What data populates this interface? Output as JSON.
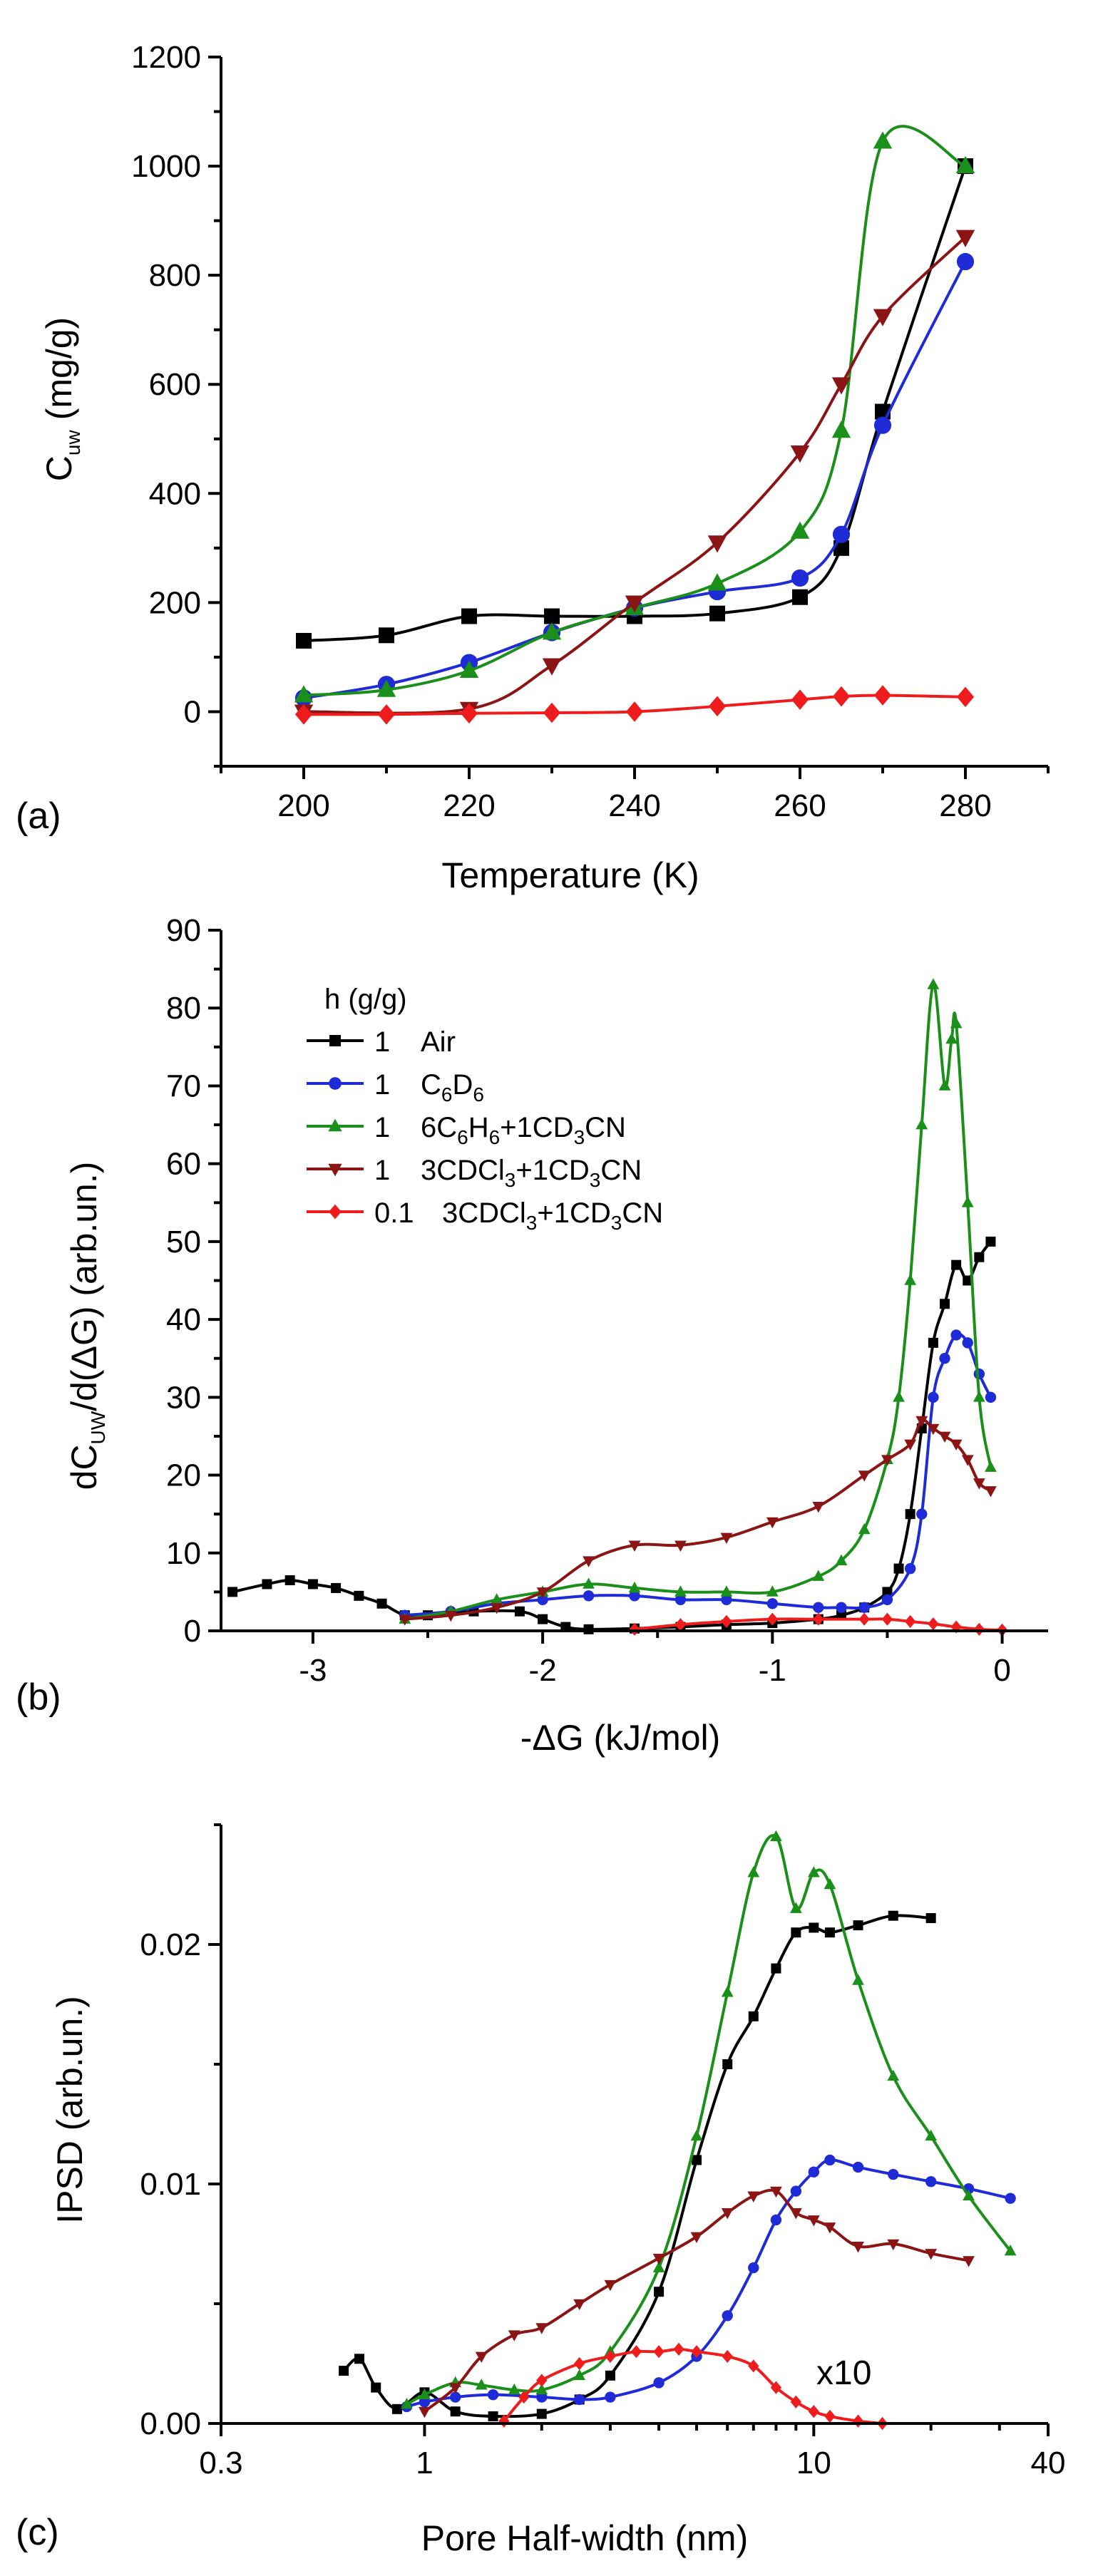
{
  "colors": {
    "air": "#000000",
    "c6d6": "#1f2bd6",
    "benzene_mix": "#1a8f1a",
    "chloroform_mix": "#8b1414",
    "chloroform_mix_low": "#ee1c1c"
  },
  "chart_data": [
    {
      "id": "a",
      "panel_label": "(a)",
      "type": "line",
      "xlabel": "Temperature  (K)",
      "ylabel_main": "C",
      "ylabel_sub": "uw",
      "ylabel_tail": "(mg/g)",
      "xlim": [
        190,
        290
      ],
      "ylim": [
        -100,
        1200
      ],
      "xticks": [
        200,
        220,
        240,
        260,
        280
      ],
      "yticks": [
        0,
        200,
        400,
        600,
        800,
        1000,
        1200
      ],
      "series": [
        {
          "name": "1 Air",
          "color_key": "air",
          "marker": "square",
          "x": [
            200,
            210,
            220,
            230,
            240,
            250,
            260,
            265,
            270,
            280
          ],
          "y": [
            130,
            140,
            175,
            175,
            175,
            180,
            210,
            300,
            550,
            1000
          ]
        },
        {
          "name": "1 C6D6",
          "color_key": "c6d6",
          "marker": "circle",
          "x": [
            200,
            210,
            220,
            230,
            240,
            250,
            260,
            265,
            270,
            280
          ],
          "y": [
            25,
            50,
            90,
            145,
            190,
            220,
            245,
            325,
            525,
            825
          ]
        },
        {
          "name": "1 6C6H6+1CD3CN",
          "color_key": "benzene_mix",
          "marker": "triangle-up",
          "x": [
            200,
            210,
            220,
            230,
            240,
            250,
            260,
            265,
            270,
            280
          ],
          "y": [
            30,
            40,
            75,
            145,
            190,
            235,
            330,
            515,
            1045,
            1000
          ]
        },
        {
          "name": "1 3CDCl3+1CD3CN",
          "color_key": "chloroform_mix",
          "marker": "triangle-down",
          "x": [
            200,
            220,
            230,
            240,
            250,
            260,
            265,
            270,
            280
          ],
          "y": [
            0,
            5,
            85,
            200,
            310,
            475,
            600,
            725,
            870
          ]
        },
        {
          "name": "0.1 3CDCl3+1CD3CN",
          "color_key": "chloroform_mix_low",
          "marker": "diamond",
          "x": [
            200,
            210,
            220,
            230,
            240,
            250,
            260,
            265,
            270,
            280
          ],
          "y": [
            -5,
            -5,
            -3,
            -2,
            0,
            10,
            22,
            28,
            30,
            27
          ]
        }
      ]
    },
    {
      "id": "b",
      "panel_label": "(b)",
      "type": "line",
      "xlabel": "-ΔG  (kJ/mol)",
      "ylabel_parts": [
        "dC",
        "UW",
        "/d(ΔG)  (arb.un.)"
      ],
      "xlim": [
        -3.4,
        0.2
      ],
      "ylim": [
        0,
        90
      ],
      "xticks": [
        -3,
        -2,
        -1,
        0
      ],
      "yticks": [
        0,
        10,
        20,
        30,
        40,
        50,
        60,
        70,
        80,
        90
      ],
      "legend_title": "h (g/g)",
      "legend": [
        {
          "h": "1",
          "label": "Air",
          "color_key": "air",
          "marker": "square"
        },
        {
          "h": "1",
          "label_parts": [
            "C",
            "6",
            "D",
            "6"
          ],
          "color_key": "c6d6",
          "marker": "circle"
        },
        {
          "h": "1",
          "label_parts": [
            "6C",
            "6",
            "H",
            "6",
            "+1CD",
            "3",
            "CN"
          ],
          "color_key": "benzene_mix",
          "marker": "triangle-up"
        },
        {
          "h": "1",
          "label_parts": [
            "3CDCl",
            "3",
            "+1CD",
            "3",
            "CN"
          ],
          "color_key": "chloroform_mix",
          "marker": "triangle-down"
        },
        {
          "h": "0.1",
          "label_parts": [
            "3CDCl",
            "3",
            "+1CD",
            "3",
            "CN"
          ],
          "color_key": "chloroform_mix_low",
          "marker": "diamond"
        }
      ],
      "series": [
        {
          "name": "1 Air",
          "color_key": "air",
          "marker": "square",
          "x": [
            -3.35,
            -3.2,
            -3.1,
            -3.0,
            -2.9,
            -2.8,
            -2.7,
            -2.6,
            -2.5,
            -2.3,
            -2.1,
            -2.0,
            -1.9,
            -1.8,
            -1.6,
            -1.4,
            -1.2,
            -1.0,
            -0.8,
            -0.7,
            -0.6,
            -0.5,
            -0.45,
            -0.4,
            -0.35,
            -0.3,
            -0.25,
            -0.2,
            -0.15,
            -0.1,
            -0.05
          ],
          "y": [
            5,
            6,
            6.5,
            6,
            5.5,
            4.5,
            3.5,
            2,
            2,
            2.5,
            2.5,
            1.5,
            0.5,
            0.2,
            0.3,
            0.5,
            0.8,
            1,
            1.5,
            2,
            3,
            5,
            8,
            15,
            26,
            37,
            42,
            47,
            45,
            48,
            50
          ]
        },
        {
          "name": "1 C6D6",
          "color_key": "c6d6",
          "marker": "circle",
          "x": [
            -2.6,
            -2.4,
            -2.2,
            -2.0,
            -1.8,
            -1.6,
            -1.4,
            -1.2,
            -1.0,
            -0.8,
            -0.7,
            -0.6,
            -0.5,
            -0.4,
            -0.35,
            -0.3,
            -0.25,
            -0.2,
            -0.15,
            -0.1,
            -0.05
          ],
          "y": [
            2,
            2.5,
            3.5,
            4,
            4.5,
            4.5,
            4,
            4,
            3.5,
            3,
            3,
            3,
            4,
            8,
            15,
            30,
            35,
            38,
            37,
            33,
            30
          ]
        },
        {
          "name": "1 6C6H6+1CD3CN",
          "color_key": "benzene_mix",
          "marker": "triangle-up",
          "x": [
            -2.6,
            -2.4,
            -2.2,
            -2.0,
            -1.8,
            -1.6,
            -1.4,
            -1.2,
            -1.0,
            -0.8,
            -0.7,
            -0.6,
            -0.5,
            -0.45,
            -0.4,
            -0.35,
            -0.3,
            -0.25,
            -0.22,
            -0.2,
            -0.15,
            -0.1,
            -0.05
          ],
          "y": [
            1.5,
            2.5,
            4,
            5,
            6,
            5.5,
            5,
            5,
            5,
            7,
            9,
            13,
            22,
            30,
            45,
            65,
            83,
            70,
            76,
            78,
            55,
            30,
            21
          ]
        },
        {
          "name": "1 3CDCl3+1CD3CN",
          "color_key": "chloroform_mix",
          "marker": "triangle-down",
          "x": [
            -2.6,
            -2.4,
            -2.2,
            -2.0,
            -1.8,
            -1.6,
            -1.4,
            -1.2,
            -1.0,
            -0.8,
            -0.6,
            -0.5,
            -0.4,
            -0.35,
            -0.3,
            -0.25,
            -0.2,
            -0.15,
            -0.1,
            -0.05
          ],
          "y": [
            1.5,
            2,
            3,
            5,
            9,
            11,
            11,
            12,
            14,
            16,
            20,
            22,
            24,
            27,
            26,
            25,
            24,
            22,
            19,
            18
          ]
        },
        {
          "name": "0.1 3CDCl3+1CD3CN",
          "color_key": "chloroform_mix_low",
          "marker": "diamond",
          "x": [
            -1.6,
            -1.4,
            -1.2,
            -1.0,
            -0.8,
            -0.6,
            -0.5,
            -0.4,
            -0.3,
            -0.2,
            -0.1,
            0.0
          ],
          "y": [
            0.2,
            0.8,
            1.2,
            1.5,
            1.5,
            1.5,
            1.5,
            1.2,
            0.9,
            0.5,
            0.2,
            0.1
          ]
        }
      ]
    },
    {
      "id": "c",
      "panel_label": "(c)",
      "type": "line",
      "xscale": "log",
      "xlabel": "Pore  Half-width  (nm)",
      "ylabel": "IPSD  (arb.un.)",
      "xlim": [
        0.3,
        40
      ],
      "ylim": [
        0,
        0.025
      ],
      "xticks": [
        0.3,
        1,
        10,
        40
      ],
      "xtick_labels": [
        "0.3",
        "1",
        "10",
        "40"
      ],
      "yticks": [
        0.0,
        0.01,
        0.02
      ],
      "ytick_labels": [
        "0.00",
        "0.01",
        "0.02"
      ],
      "annotation": "x10",
      "series": [
        {
          "name": "1 Air",
          "color_key": "air",
          "marker": "square",
          "x": [
            0.62,
            0.68,
            0.75,
            0.85,
            1.0,
            1.2,
            1.5,
            2.0,
            2.5,
            3.0,
            4.0,
            5.0,
            6.0,
            7.0,
            8.0,
            9.0,
            10.0,
            11.0,
            13.0,
            16.0,
            20.0
          ],
          "y": [
            0.0022,
            0.0027,
            0.0015,
            0.0006,
            0.0013,
            0.0005,
            0.0003,
            0.0004,
            0.001,
            0.002,
            0.0055,
            0.011,
            0.015,
            0.017,
            0.019,
            0.0205,
            0.0207,
            0.0205,
            0.0208,
            0.0212,
            0.0211
          ]
        },
        {
          "name": "1 C6D6",
          "color_key": "c6d6",
          "marker": "circle",
          "x": [
            0.9,
            1.0,
            1.2,
            1.5,
            2.0,
            2.5,
            3.0,
            4.0,
            5.0,
            6.0,
            7.0,
            8.0,
            9.0,
            10.0,
            11.0,
            13.0,
            16.0,
            20.0,
            25.0,
            32.0
          ],
          "y": [
            0.0007,
            0.0009,
            0.0011,
            0.0012,
            0.0011,
            0.001,
            0.0011,
            0.0017,
            0.0028,
            0.0045,
            0.0065,
            0.0085,
            0.0097,
            0.0105,
            0.011,
            0.0107,
            0.0104,
            0.0101,
            0.0098,
            0.0094
          ]
        },
        {
          "name": "1 6C6H6+1CD3CN",
          "color_key": "benzene_mix",
          "marker": "triangle-up",
          "x": [
            0.9,
            1.0,
            1.2,
            1.4,
            1.7,
            2.0,
            2.5,
            3.0,
            4.0,
            5.0,
            6.0,
            7.0,
            8.0,
            9.0,
            10.0,
            11.0,
            13.0,
            16.0,
            20.0,
            25.0,
            32.0
          ],
          "y": [
            0.0008,
            0.0012,
            0.0017,
            0.0016,
            0.0014,
            0.0014,
            0.002,
            0.003,
            0.0065,
            0.012,
            0.018,
            0.023,
            0.0245,
            0.0215,
            0.023,
            0.0225,
            0.0185,
            0.0145,
            0.012,
            0.0095,
            0.0072
          ]
        },
        {
          "name": "1 3CDCl3+1CD3CN",
          "color_key": "chloroform_mix",
          "marker": "triangle-down",
          "x": [
            1.0,
            1.2,
            1.4,
            1.7,
            2.0,
            2.5,
            3.0,
            4.0,
            5.0,
            6.0,
            7.0,
            8.0,
            9.0,
            10.0,
            11.0,
            13.0,
            16.0,
            20.0,
            25.0
          ],
          "y": [
            0.0005,
            0.0015,
            0.0028,
            0.0037,
            0.004,
            0.005,
            0.0058,
            0.0069,
            0.0078,
            0.0088,
            0.0095,
            0.0097,
            0.0088,
            0.0085,
            0.0082,
            0.0074,
            0.0075,
            0.0071,
            0.0068
          ]
        },
        {
          "name": "0.1 3CDCl3+1CD3CN (x10)",
          "color_key": "chloroform_mix_low",
          "marker": "diamond",
          "x": [
            1.6,
            1.8,
            2.0,
            2.5,
            3.0,
            3.5,
            4.0,
            4.5,
            5.0,
            6.0,
            7.0,
            8.0,
            9.0,
            10.0,
            11.0,
            13.0,
            15.0
          ],
          "y": [
            0.0001,
            0.0011,
            0.0018,
            0.0025,
            0.0028,
            0.003,
            0.003,
            0.0031,
            0.003,
            0.0028,
            0.0024,
            0.0015,
            0.0009,
            0.0005,
            0.0003,
            0.0001,
            0.0
          ]
        }
      ]
    }
  ]
}
